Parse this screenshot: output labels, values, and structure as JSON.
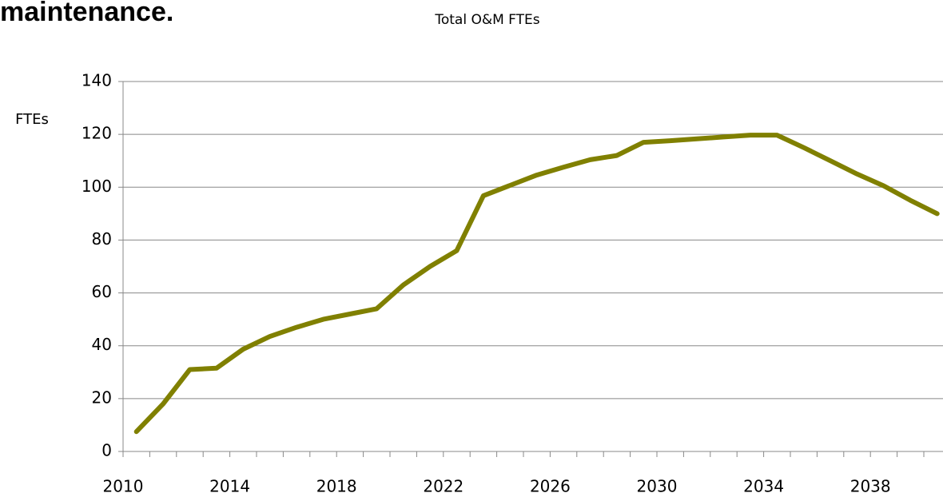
{
  "heading": "maintenance.",
  "chart_data": {
    "type": "line",
    "title": "Total O&M FTEs",
    "y_label": "FTEs",
    "categories": [
      "2010",
      null,
      null,
      null,
      "2014",
      null,
      null,
      null,
      "2018",
      null,
      null,
      null,
      "2022",
      null,
      null,
      null,
      "2026",
      null,
      null,
      null,
      "2030",
      null,
      null,
      null,
      "2034",
      null,
      null,
      null,
      "2038",
      null,
      null
    ],
    "series": [
      {
        "name": "Total O&M FTEs",
        "color": "#808000",
        "values": [
          7.5,
          18,
          31,
          31.5,
          38.7,
          43.5,
          47,
          50,
          52,
          54,
          63,
          70,
          76,
          96.8,
          100.7,
          104.6,
          107.6,
          110.4,
          112,
          117,
          117.6,
          118.3,
          119,
          119.7,
          119.7,
          115,
          110,
          105,
          100.5,
          95,
          90
        ]
      }
    ],
    "ylim": [
      0,
      140
    ],
    "yticks": [
      0,
      20,
      40,
      60,
      80,
      100,
      120,
      140
    ],
    "grid": true
  }
}
